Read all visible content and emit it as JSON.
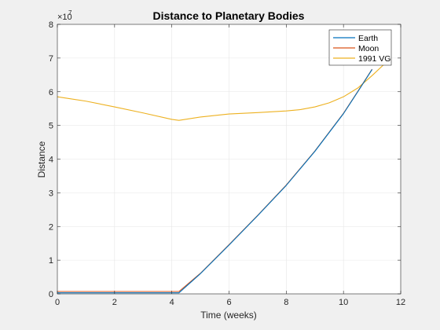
{
  "chart_data": {
    "type": "line",
    "title": "Distance to Planetary Bodies",
    "xlabel": "Time (weeks)",
    "ylabel": "Distance",
    "y_exponent_label": "×10",
    "y_exponent_power": "7",
    "xlim": [
      0,
      12
    ],
    "ylim": [
      0,
      80000000
    ],
    "xticks": [
      0,
      2,
      4,
      6,
      8,
      10,
      12
    ],
    "yticks": [
      0,
      10000000,
      20000000,
      30000000,
      40000000,
      50000000,
      60000000,
      70000000,
      80000000
    ],
    "xtick_labels": [
      "0",
      "2",
      "4",
      "6",
      "8",
      "10",
      "12"
    ],
    "ytick_labels": [
      "0",
      "1",
      "2",
      "3",
      "4",
      "5",
      "6",
      "7",
      "8"
    ],
    "grid": true,
    "legend_position": "top-right",
    "series": [
      {
        "name": "Earth",
        "color": "#0072BD",
        "x": [
          0,
          1,
          2,
          3,
          4,
          4.25,
          5,
          6,
          7,
          8,
          9,
          10,
          10.5,
          11.0
        ],
        "y": [
          300000,
          300000,
          300000,
          300000,
          300000,
          300000,
          6000000,
          14500000,
          23200000,
          32200000,
          42300000,
          53500000,
          60000000,
          66600000
        ]
      },
      {
        "name": "Moon",
        "color": "#D95319",
        "x": [
          0,
          1,
          2,
          3,
          4,
          4.25,
          5,
          6,
          7,
          8,
          9,
          10,
          10.5,
          11.0
        ],
        "y": [
          700000,
          700000,
          700000,
          700000,
          700000,
          700000,
          6100000,
          14600000,
          23300000,
          32300000,
          42400000,
          53600000,
          60100000,
          66700000
        ]
      },
      {
        "name": "1991 VG",
        "color": "#EDB120",
        "x": [
          0,
          1,
          2,
          3,
          4,
          4.25,
          5,
          6,
          7,
          8,
          8.5,
          9,
          9.5,
          10,
          10.5,
          11,
          11.5
        ],
        "y": [
          58500000,
          57200000,
          55500000,
          53700000,
          51800000,
          51500000,
          52500000,
          53400000,
          53800000,
          54300000,
          54700000,
          55500000,
          56700000,
          58500000,
          61100000,
          64800000,
          68800000
        ]
      }
    ]
  }
}
